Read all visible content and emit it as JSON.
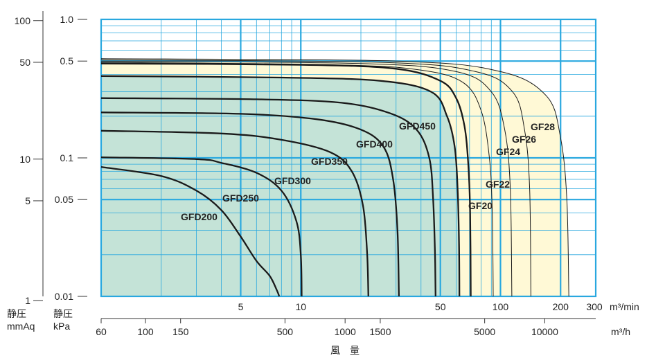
{
  "chart_data": {
    "type": "line",
    "x_axis_primary": {
      "unit": "m³/min",
      "scale": "log",
      "range": [
        1,
        300
      ],
      "tick_labels": [
        "5",
        "10",
        "50",
        "100",
        "200",
        "300"
      ],
      "tick_values": [
        5,
        10,
        50,
        100,
        200,
        300
      ]
    },
    "x_axis_secondary": {
      "unit": "m³/h",
      "scale": "log",
      "tick_labels": [
        "60",
        "100",
        "150",
        "500",
        "1000",
        "1500",
        "5000",
        "10000"
      ],
      "tick_values": [
        60,
        100,
        150,
        500,
        1000,
        1500,
        5000,
        10000
      ]
    },
    "y_axis_kpa": {
      "label_line1": "静圧",
      "label_line2": "kPa",
      "scale": "log",
      "range": [
        0.01,
        1.0
      ],
      "tick_labels": [
        "0.01",
        "0.05",
        "0.1",
        "0.5",
        "1.0"
      ],
      "tick_values": [
        0.01,
        0.05,
        0.1,
        0.5,
        1.0
      ]
    },
    "y_axis_mmaq": {
      "label_line1": "静圧",
      "label_line2": "mmAq",
      "scale": "log",
      "tick_labels": [
        "1",
        "5",
        "10",
        "50",
        "100"
      ],
      "tick_values": [
        1,
        5,
        10,
        50,
        100
      ]
    },
    "xlabel": "風　量",
    "grid": true,
    "series": [
      {
        "name": "GFD200",
        "group": "GFD",
        "values": [
          [
            1,
            0.086
          ],
          [
            2,
            0.074
          ],
          [
            3,
            0.058
          ],
          [
            4,
            0.042
          ],
          [
            5,
            0.027
          ],
          [
            6,
            0.018
          ],
          [
            7,
            0.014
          ],
          [
            7.6,
            0.011
          ],
          [
            7.8,
            0.01
          ]
        ]
      },
      {
        "name": "GFD250",
        "group": "GFD",
        "values": [
          [
            1,
            0.101
          ],
          [
            3,
            0.098
          ],
          [
            4,
            0.092
          ],
          [
            6,
            0.078
          ],
          [
            8,
            0.058
          ],
          [
            9.5,
            0.035
          ],
          [
            10,
            0.02
          ],
          [
            10.1,
            0.01
          ]
        ]
      },
      {
        "name": "GFD300",
        "group": "GFD",
        "values": [
          [
            1,
            0.157
          ],
          [
            4,
            0.15
          ],
          [
            8,
            0.135
          ],
          [
            14,
            0.11
          ],
          [
            18,
            0.08
          ],
          [
            20.5,
            0.045
          ],
          [
            21.5,
            0.02
          ],
          [
            21.8,
            0.01
          ]
        ]
      },
      {
        "name": "GFD350",
        "group": "GFD",
        "values": [
          [
            1,
            0.213
          ],
          [
            5,
            0.208
          ],
          [
            12,
            0.19
          ],
          [
            20,
            0.16
          ],
          [
            26,
            0.12
          ],
          [
            29,
            0.07
          ],
          [
            30.5,
            0.03
          ],
          [
            31,
            0.01
          ]
        ]
      },
      {
        "name": "GFD400",
        "group": "GFD",
        "values": [
          [
            1,
            0.27
          ],
          [
            6,
            0.265
          ],
          [
            16,
            0.25
          ],
          [
            28,
            0.21
          ],
          [
            38,
            0.16
          ],
          [
            44,
            0.1
          ],
          [
            46,
            0.05
          ],
          [
            47,
            0.02
          ],
          [
            47.3,
            0.01
          ]
        ]
      },
      {
        "name": "GFD450",
        "group": "GFD",
        "values": [
          [
            1,
            0.39
          ],
          [
            8,
            0.38
          ],
          [
            25,
            0.36
          ],
          [
            45,
            0.3
          ],
          [
            54,
            0.2
          ],
          [
            59,
            0.12
          ],
          [
            61,
            0.06
          ],
          [
            62,
            0.025
          ],
          [
            62.3,
            0.01
          ]
        ]
      },
      {
        "name": "GF20",
        "group": "GF",
        "values": [
          [
            1,
            0.48
          ],
          [
            10,
            0.47
          ],
          [
            30,
            0.44
          ],
          [
            50,
            0.36
          ],
          [
            60,
            0.27
          ],
          [
            66,
            0.17
          ],
          [
            69,
            0.09
          ],
          [
            70.5,
            0.04
          ],
          [
            71,
            0.01
          ]
        ]
      },
      {
        "name": "GF22",
        "group": "GF",
        "values": [
          [
            1,
            0.49
          ],
          [
            15,
            0.47
          ],
          [
            40,
            0.43
          ],
          [
            65,
            0.35
          ],
          [
            80,
            0.22
          ],
          [
            88,
            0.1
          ],
          [
            91,
            0.04
          ],
          [
            92,
            0.01
          ]
        ]
      },
      {
        "name": "GF24",
        "group": "GF",
        "values": [
          [
            1,
            0.5
          ],
          [
            20,
            0.48
          ],
          [
            60,
            0.42
          ],
          [
            90,
            0.3
          ],
          [
            105,
            0.16
          ],
          [
            112,
            0.06
          ],
          [
            114,
            0.01
          ]
        ]
      },
      {
        "name": "GF26",
        "group": "GF",
        "values": [
          [
            1,
            0.51
          ],
          [
            25,
            0.49
          ],
          [
            75,
            0.42
          ],
          [
            115,
            0.3
          ],
          [
            132,
            0.16
          ],
          [
            140,
            0.06
          ],
          [
            142,
            0.01
          ]
        ]
      },
      {
        "name": "GF28",
        "group": "GF",
        "values": [
          [
            1,
            0.52
          ],
          [
            30,
            0.5
          ],
          [
            100,
            0.42
          ],
          [
            170,
            0.28
          ],
          [
            200,
            0.14
          ],
          [
            215,
            0.05
          ],
          [
            220,
            0.01
          ]
        ]
      }
    ],
    "colors": {
      "grid": "#29a8df",
      "gfd_fill": "#c4e3d7",
      "gf_fill": "#fff9d6",
      "curve": "#1a1a1a",
      "frame_axis": "#333333"
    }
  }
}
